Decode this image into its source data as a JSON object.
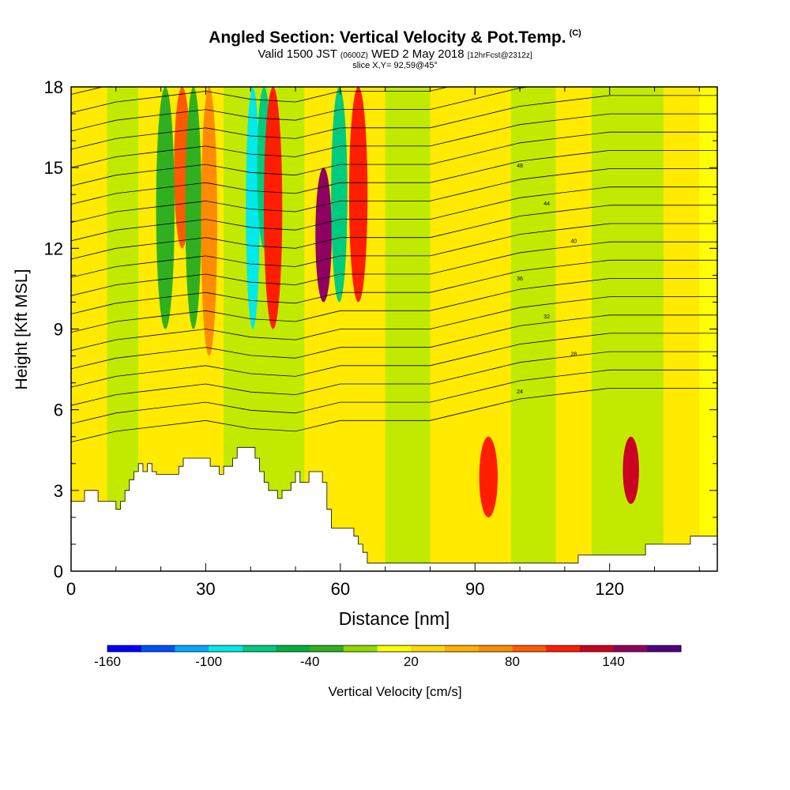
{
  "header": {
    "title": "Angled Section: Vertical Velocity & Pot.Temp.",
    "title_units": "(C)",
    "valid_prefix": "Valid 1500 JST",
    "valid_zulu": "(0600Z)",
    "valid_date": "WED 2 May 2018",
    "forecast": "[12hrFcst@2312z]",
    "slice": "slice X,Y= 92,59@45°"
  },
  "chart_data": {
    "type": "heatmap",
    "xlabel": "Distance [nm]",
    "ylabel": "Height [Kft MSL]",
    "xlim": [
      0,
      144
    ],
    "ylim": [
      0,
      18
    ],
    "x_ticks": [
      0,
      30,
      60,
      90,
      120
    ],
    "y_ticks": [
      0,
      3,
      6,
      9,
      12,
      15,
      18
    ],
    "colorbar": {
      "label": "Vertical Velocity [cm/s]",
      "tick_labels": [
        "-160",
        "-100",
        "-40",
        "20",
        "80",
        "140"
      ],
      "tick_values": [
        -160,
        -100,
        -40,
        20,
        80,
        140
      ],
      "range": [
        -160,
        180
      ],
      "step": 20,
      "colors": [
        "#0000ff",
        "#0050ff",
        "#00aaff",
        "#00eaea",
        "#00cc80",
        "#00b040",
        "#30b020",
        "#90d800",
        "#ffff00",
        "#ffd800",
        "#ffb000",
        "#ff8c00",
        "#ff5a00",
        "#ff1e00",
        "#cc0020",
        "#900060",
        "#50007f"
      ]
    },
    "terrain_height_kft": [
      [
        0,
        2.6
      ],
      [
        3,
        2.6
      ],
      [
        3,
        3.0
      ],
      [
        6,
        3.0
      ],
      [
        6,
        2.6
      ],
      [
        10,
        2.6
      ],
      [
        10,
        2.3
      ],
      [
        11,
        2.3
      ],
      [
        11,
        2.6
      ],
      [
        12,
        2.6
      ],
      [
        12,
        3.0
      ],
      [
        13,
        3.0
      ],
      [
        13,
        3.4
      ],
      [
        14,
        3.4
      ],
      [
        14,
        3.7
      ],
      [
        15,
        3.7
      ],
      [
        15,
        4.0
      ],
      [
        16,
        4.0
      ],
      [
        16,
        3.7
      ],
      [
        17,
        3.7
      ],
      [
        17,
        4.0
      ],
      [
        18,
        4.0
      ],
      [
        18,
        3.7
      ],
      [
        19,
        3.7
      ],
      [
        19,
        3.6
      ],
      [
        24,
        3.6
      ],
      [
        24,
        3.9
      ],
      [
        25,
        3.9
      ],
      [
        25,
        4.2
      ],
      [
        27,
        4.2
      ],
      [
        27,
        4.2
      ],
      [
        31,
        4.2
      ],
      [
        31,
        3.9
      ],
      [
        33,
        3.9
      ],
      [
        33,
        3.6
      ],
      [
        34,
        3.6
      ],
      [
        34,
        3.9
      ],
      [
        36,
        3.9
      ],
      [
        36,
        4.2
      ],
      [
        37,
        4.2
      ],
      [
        37,
        4.6
      ],
      [
        41,
        4.6
      ],
      [
        41,
        4.2
      ],
      [
        42,
        4.2
      ],
      [
        42,
        3.7
      ],
      [
        43,
        3.7
      ],
      [
        43,
        3.3
      ],
      [
        44,
        3.3
      ],
      [
        44,
        3.0
      ],
      [
        46,
        3.0
      ],
      [
        46,
        2.7
      ],
      [
        47,
        2.7
      ],
      [
        47,
        3.0
      ],
      [
        49,
        3.0
      ],
      [
        49,
        3.3
      ],
      [
        50,
        3.3
      ],
      [
        50,
        3.7
      ],
      [
        51,
        3.7
      ],
      [
        51,
        3.3
      ],
      [
        53,
        3.3
      ],
      [
        53,
        3.7
      ],
      [
        56,
        3.7
      ],
      [
        56,
        3.3
      ],
      [
        57,
        3.3
      ],
      [
        57,
        2.3
      ],
      [
        58,
        2.3
      ],
      [
        58,
        1.6
      ],
      [
        63,
        1.6
      ],
      [
        63,
        1.3
      ],
      [
        64,
        1.3
      ],
      [
        64,
        1.0
      ],
      [
        65,
        1.0
      ],
      [
        65,
        0.7
      ],
      [
        66,
        0.7
      ],
      [
        66,
        0.3
      ],
      [
        113,
        0.3
      ],
      [
        113,
        0.6
      ],
      [
        128,
        0.6
      ],
      [
        128,
        1.0
      ],
      [
        138,
        1.0
      ],
      [
        138,
        1.3
      ],
      [
        144,
        1.3
      ]
    ],
    "velocity_cells_cm_s": [
      {
        "x": [
          20,
          22
        ],
        "y": [
          9,
          18
        ],
        "v": -40
      },
      {
        "x": [
          24,
          25.5
        ],
        "y": [
          12,
          18
        ],
        "v": 80
      },
      {
        "x": [
          26.5,
          28
        ],
        "y": [
          9,
          18
        ],
        "v": -40
      },
      {
        "x": [
          30,
          31.5
        ],
        "y": [
          8,
          18
        ],
        "v": 60
      },
      {
        "x": [
          40,
          41
        ],
        "y": [
          9,
          18
        ],
        "v": -100
      },
      {
        "x": [
          42.5,
          43.5
        ],
        "y": [
          12,
          18
        ],
        "v": -80
      },
      {
        "x": [
          44,
          46
        ],
        "y": [
          9,
          18
        ],
        "v": 100
      },
      {
        "x": [
          55.5,
          57
        ],
        "y": [
          10,
          15
        ],
        "v": 140
      },
      {
        "x": [
          59,
          60.5
        ],
        "y": [
          10,
          18
        ],
        "v": -80
      },
      {
        "x": [
          63,
          65
        ],
        "y": [
          10,
          18
        ],
        "v": 100
      },
      {
        "x": [
          92,
          94
        ],
        "y": [
          2,
          5
        ],
        "v": 100
      },
      {
        "x": [
          124,
          125.5
        ],
        "y": [
          2.5,
          5
        ],
        "v": 120
      }
    ],
    "theta_contour_heights_kft": {
      "x": [
        0,
        10,
        20,
        30,
        40,
        50,
        60,
        70,
        80,
        90,
        100,
        110,
        120,
        130,
        144
      ],
      "base": [
        4.8,
        5.2,
        5.4,
        5.6,
        5.3,
        5.2,
        5.6,
        5.6,
        5.6,
        6.0,
        6.4,
        6.6,
        6.8,
        6.8,
        6.8
      ],
      "interval": 0.68,
      "count": 20
    },
    "contour_labels": [
      "48",
      "44",
      "40",
      "36",
      "32",
      "28",
      "24"
    ]
  }
}
